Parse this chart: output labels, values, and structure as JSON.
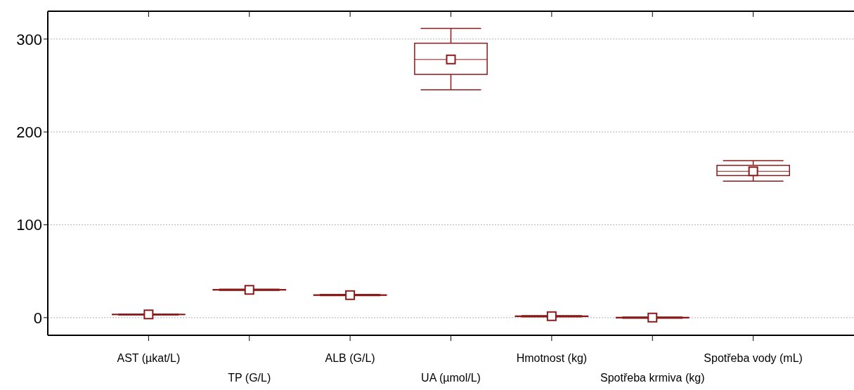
{
  "chart_data": {
    "type": "box",
    "categories": [
      "AST (µkat/L)",
      "TP (G/L)",
      "ALB (G/L)",
      "UA (µmol/L)",
      "Hmotnost (kg)",
      "Spotřeba krmiva (kg)",
      "Spotřeba vody (mL)"
    ],
    "color": "#8b1a1a",
    "marker": "square",
    "grid": "y",
    "ylim": [
      -19,
      330
    ],
    "yticks": [
      0,
      100,
      200,
      300
    ],
    "boxes": [
      {
        "low": 2.9,
        "q1": 3.2,
        "median": 3.4,
        "q3": 3.6,
        "high": 3.9,
        "mean": 3.4
      },
      {
        "low": 29.3,
        "q1": 29.7,
        "median": 30,
        "q3": 30.3,
        "high": 30.7,
        "mean": 30
      },
      {
        "low": 23.6,
        "q1": 24,
        "median": 24.3,
        "q3": 24.6,
        "high": 25,
        "mean": 24.3
      },
      {
        "low": 245.5,
        "q1": 262,
        "median": 278,
        "q3": 295.5,
        "high": 311.5,
        "mean": 278
      },
      {
        "low": 0.9,
        "q1": 1.2,
        "median": 1.5,
        "q3": 1.8,
        "high": 2.1,
        "mean": 1.5
      },
      {
        "low": -0.6,
        "q1": -0.3,
        "median": 0,
        "q3": 0.3,
        "high": 0.6,
        "mean": 0
      },
      {
        "low": 147,
        "q1": 153,
        "median": 157.6,
        "q3": 164,
        "high": 169,
        "mean": 157.6
      }
    ]
  }
}
